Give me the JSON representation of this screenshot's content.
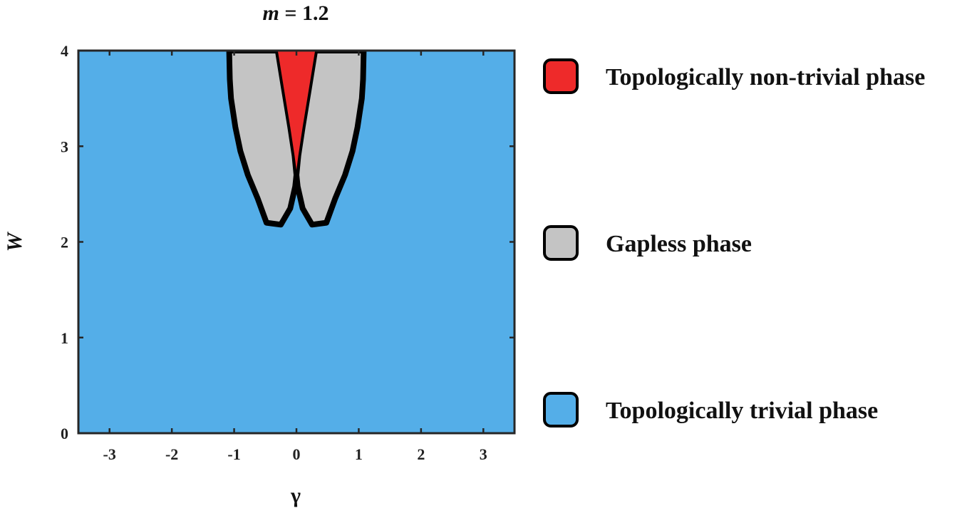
{
  "chart_data": {
    "type": "heatmap",
    "title": "m = 1.2",
    "title_var": "m",
    "title_rest": " = 1.2",
    "xlabel": "γ",
    "ylabel": "W",
    "xlim": [
      -3.5,
      3.5
    ],
    "ylim": [
      0,
      4
    ],
    "xticks": [
      -3,
      -2,
      -1,
      0,
      1,
      2,
      3
    ],
    "yticks": [
      0,
      1,
      2,
      3,
      4
    ],
    "legend_position": "right",
    "phases": [
      {
        "name": "Topologically non-trivial phase",
        "color": "#EE2A2A"
      },
      {
        "name": "Gapless phase",
        "color": "#C4C4C4"
      },
      {
        "name": "Topologically trivial phase",
        "color": "#54AEE8"
      }
    ],
    "regions": {
      "gapless_left": [
        [
          -1.08,
          4.0
        ],
        [
          -1.07,
          3.7
        ],
        [
          -1.05,
          3.5
        ],
        [
          -0.98,
          3.2
        ],
        [
          -0.9,
          2.95
        ],
        [
          -0.78,
          2.7
        ],
        [
          -0.62,
          2.45
        ],
        [
          -0.48,
          2.2
        ],
        [
          -0.25,
          2.18
        ],
        [
          -0.1,
          2.35
        ],
        [
          -0.02,
          2.58
        ],
        [
          0.0,
          2.7
        ],
        [
          -0.03,
          2.9
        ],
        [
          -0.1,
          3.2
        ],
        [
          -0.2,
          3.6
        ],
        [
          -0.3,
          4.0
        ]
      ],
      "gapless_right": [
        [
          1.08,
          4.0
        ],
        [
          1.07,
          3.7
        ],
        [
          1.05,
          3.5
        ],
        [
          0.98,
          3.2
        ],
        [
          0.9,
          2.95
        ],
        [
          0.78,
          2.7
        ],
        [
          0.62,
          2.45
        ],
        [
          0.48,
          2.2
        ],
        [
          0.25,
          2.18
        ],
        [
          0.1,
          2.35
        ],
        [
          0.02,
          2.58
        ],
        [
          0.0,
          2.7
        ],
        [
          0.03,
          2.9
        ],
        [
          0.1,
          3.2
        ],
        [
          0.2,
          3.6
        ],
        [
          0.3,
          4.0
        ]
      ],
      "nontrivial": [
        [
          -0.3,
          4.0
        ],
        [
          -0.2,
          3.6
        ],
        [
          -0.1,
          3.2
        ],
        [
          -0.03,
          2.9
        ],
        [
          0.0,
          2.75
        ],
        [
          0.03,
          2.9
        ],
        [
          0.1,
          3.2
        ],
        [
          0.2,
          3.6
        ],
        [
          0.3,
          4.0
        ]
      ]
    }
  }
}
